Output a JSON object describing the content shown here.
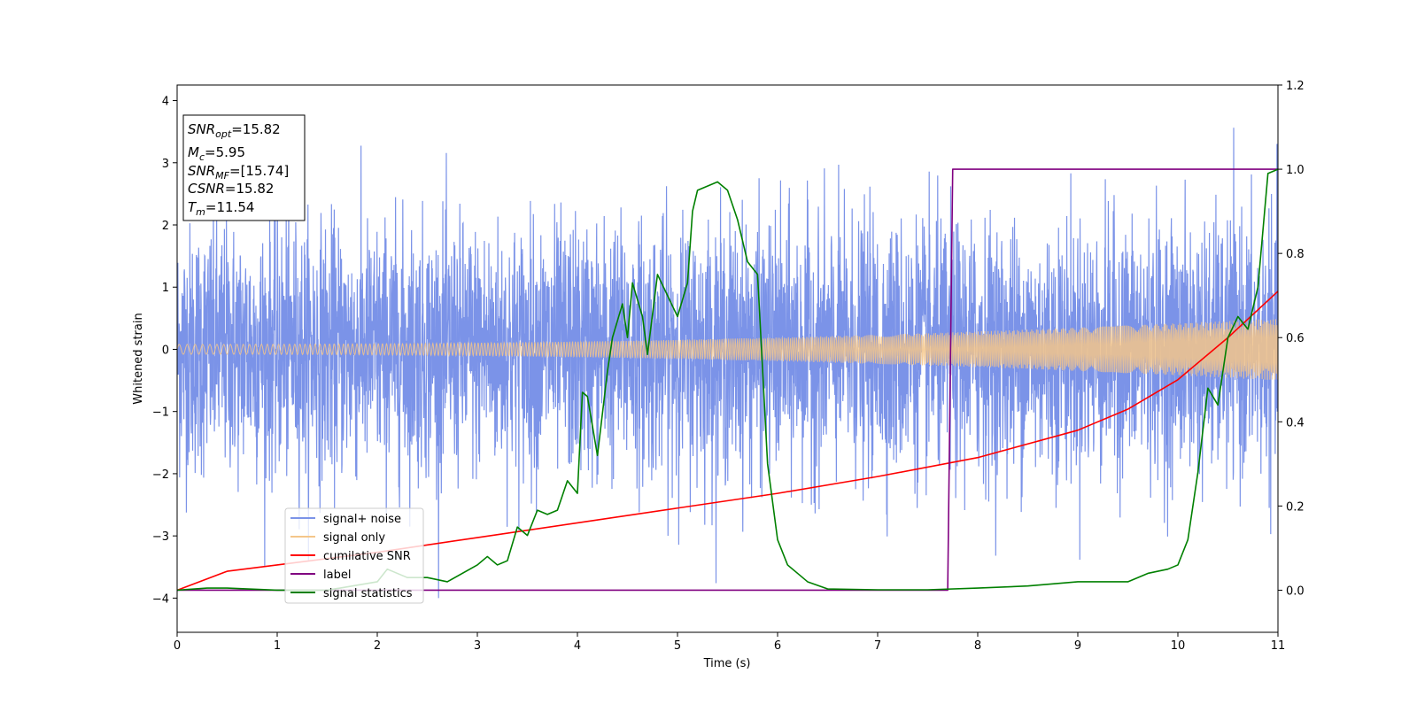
{
  "chart_data": {
    "type": "line",
    "xlabel": "Time (s)",
    "ylabel": "Whitened strain",
    "xlim": [
      0,
      11
    ],
    "ylim": [
      -4.55,
      4.25
    ],
    "y2lim": [
      -0.1,
      1.2
    ],
    "xticks": [
      "0",
      "1",
      "2",
      "3",
      "4",
      "5",
      "6",
      "7",
      "8",
      "9",
      "10",
      "11"
    ],
    "yticks": [
      "4",
      "3",
      "2",
      "1",
      "0",
      "−1",
      "−2",
      "−3",
      "−4"
    ],
    "y2ticks": [
      "1.2",
      "1.0",
      "0.8",
      "0.6",
      "0.4",
      "0.2",
      "0.0"
    ],
    "grid": false,
    "legend_position": "lower-left",
    "info_box": {
      "snr_opt": {
        "base": "SNR",
        "sub": "opt",
        "value": "=15.82"
      },
      "mc": {
        "base": "M",
        "sub": "c",
        "value": "=5.95"
      },
      "snr_mf": {
        "base": "SNR",
        "sub": "MF",
        "value": "=[15.74]"
      },
      "csnr": {
        "base": "CSNR",
        "value": "=15.82"
      },
      "tm": {
        "base": "T",
        "sub": "m",
        "value": "=11.54"
      }
    },
    "series": [
      {
        "name": "signal+ noise",
        "color": "#7b93e8",
        "axis": "left",
        "std": 1.0
      },
      {
        "name": "signal only",
        "color": "#f4c68a",
        "axis": "left",
        "amplitude_start": 0.08,
        "amplitude_end": 0.5
      },
      {
        "name": "cumilative SNR",
        "color": "#ff0000",
        "axis": "right",
        "x": [
          0,
          0.5,
          1,
          2,
          3,
          4,
          5,
          6,
          7,
          8,
          9,
          9.5,
          10,
          10.5,
          11
        ],
        "y": [
          0.0,
          0.045,
          0.06,
          0.09,
          0.125,
          0.16,
          0.195,
          0.23,
          0.27,
          0.315,
          0.38,
          0.43,
          0.5,
          0.6,
          0.71
        ]
      },
      {
        "name": "label",
        "color": "#800080",
        "axis": "right",
        "x": [
          0,
          7.7,
          7.75,
          11
        ],
        "y": [
          0.0,
          0.0,
          1.0,
          1.0
        ]
      },
      {
        "name": "signal statistics",
        "color": "#008000",
        "axis": "right",
        "x": [
          0,
          0.3,
          0.5,
          1,
          1.5,
          2,
          2.1,
          2.3,
          2.5,
          2.7,
          3,
          3.1,
          3.2,
          3.3,
          3.4,
          3.5,
          3.6,
          3.7,
          3.8,
          3.9,
          4.0,
          4.05,
          4.1,
          4.2,
          4.3,
          4.35,
          4.45,
          4.5,
          4.55,
          4.65,
          4.7,
          4.8,
          4.9,
          5.0,
          5.1,
          5.15,
          5.2,
          5.3,
          5.4,
          5.5,
          5.6,
          5.7,
          5.8,
          5.9,
          6.0,
          6.1,
          6.2,
          6.3,
          6.5,
          7,
          7.5,
          8,
          8.5,
          9,
          9.5,
          9.7,
          9.9,
          10.0,
          10.1,
          10.2,
          10.3,
          10.4,
          10.5,
          10.6,
          10.7,
          10.8,
          10.9,
          11
        ],
        "y": [
          0.0,
          0.005,
          0.005,
          0.0,
          0.0,
          0.02,
          0.05,
          0.03,
          0.03,
          0.02,
          0.06,
          0.08,
          0.06,
          0.07,
          0.15,
          0.13,
          0.19,
          0.18,
          0.19,
          0.26,
          0.23,
          0.47,
          0.46,
          0.32,
          0.52,
          0.6,
          0.68,
          0.6,
          0.73,
          0.65,
          0.56,
          0.75,
          0.7,
          0.65,
          0.73,
          0.9,
          0.95,
          0.96,
          0.97,
          0.95,
          0.88,
          0.78,
          0.75,
          0.3,
          0.12,
          0.06,
          0.04,
          0.02,
          0.003,
          0.001,
          0.001,
          0.005,
          0.01,
          0.02,
          0.02,
          0.04,
          0.05,
          0.06,
          0.12,
          0.28,
          0.48,
          0.44,
          0.6,
          0.65,
          0.62,
          0.72,
          0.99,
          1.0
        ]
      }
    ]
  }
}
